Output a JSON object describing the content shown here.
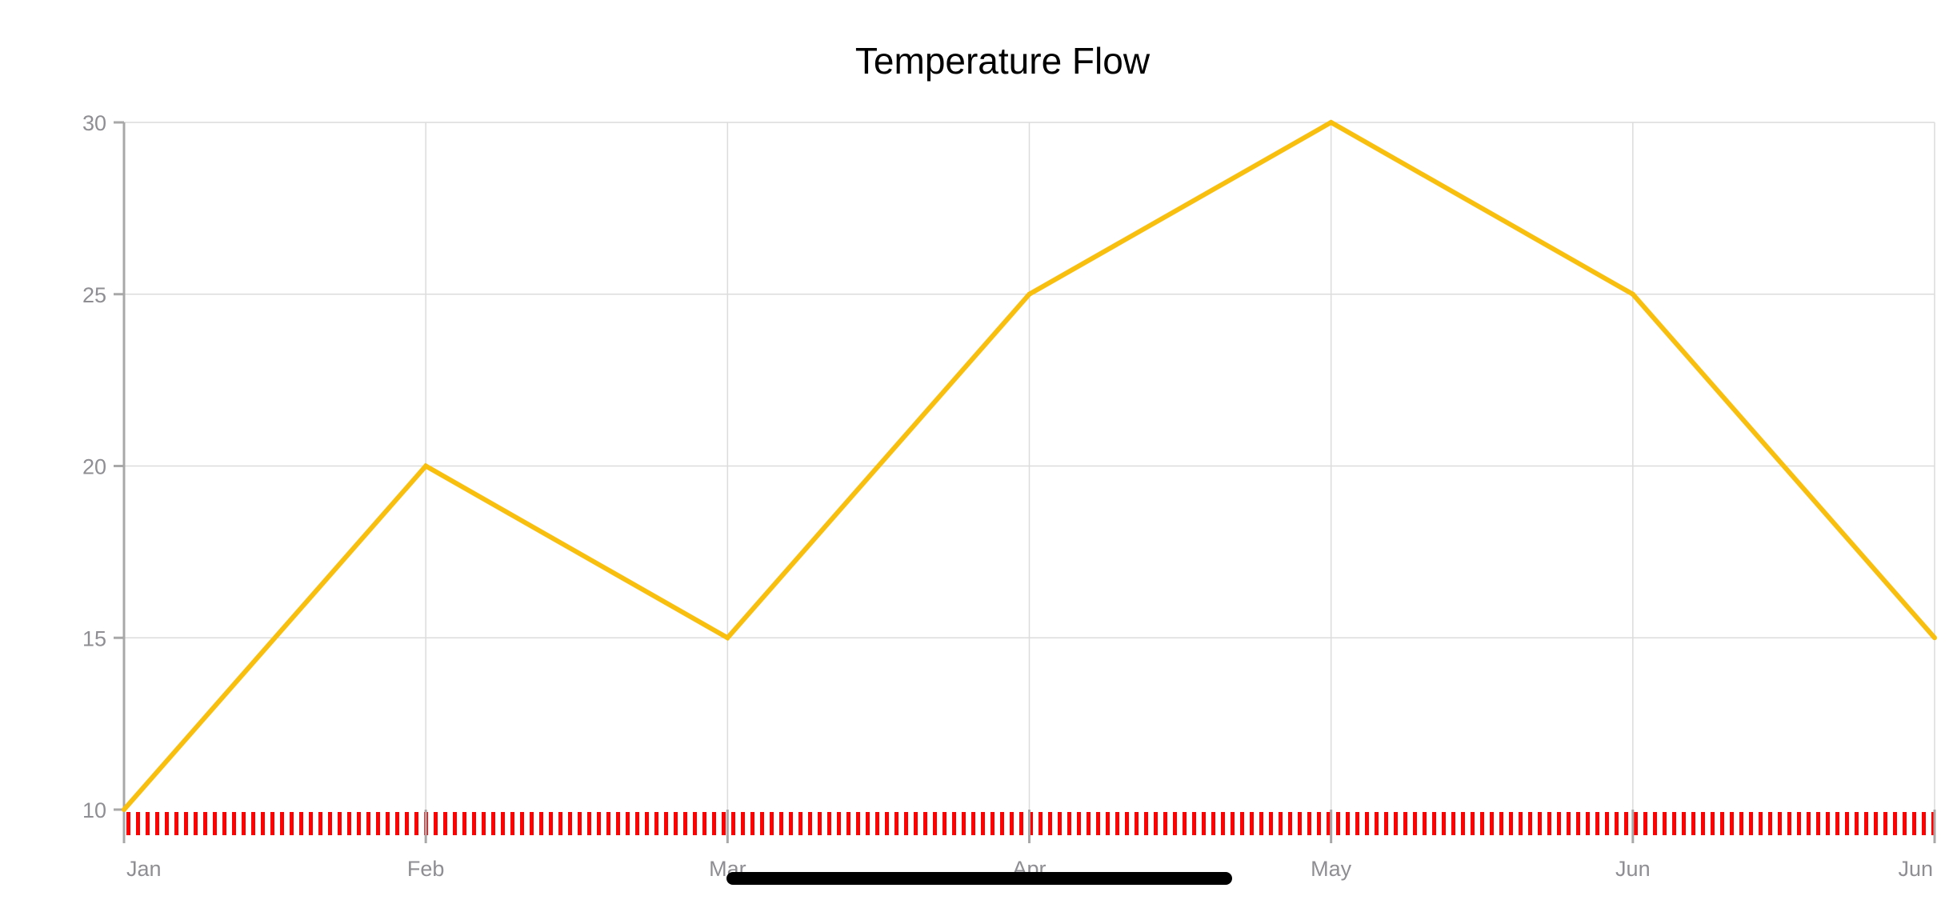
{
  "chart_data": {
    "type": "line",
    "title": "Temperature Flow",
    "xlabel": "",
    "ylabel": "",
    "categories": [
      "Jan",
      "Feb",
      "Mar",
      "Apr",
      "May",
      "Jun",
      "Jun"
    ],
    "series": [
      {
        "values": [
          10,
          20,
          15,
          25,
          30,
          25,
          15
        ],
        "color": "#F8BF0F"
      }
    ],
    "ylim": [
      10,
      30
    ],
    "yticks": [
      "10",
      "15",
      "20",
      "25",
      "30"
    ],
    "grid": true,
    "legend": "none",
    "baseline_pattern_color": "#FF0000"
  }
}
